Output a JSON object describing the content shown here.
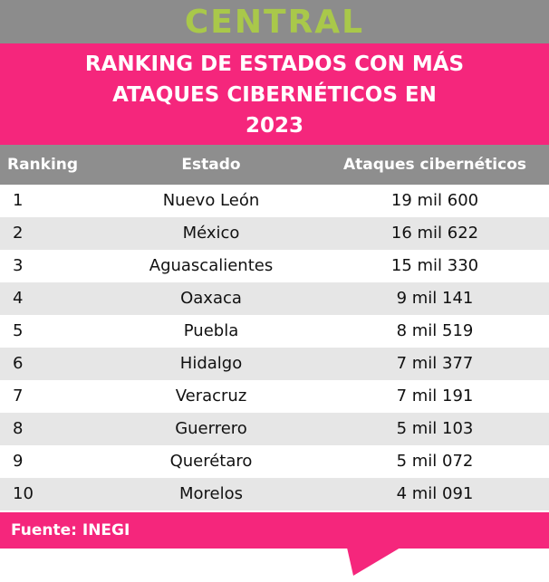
{
  "header": {
    "brand": "CENTRAL",
    "title_lines": [
      "RANKING DE ESTADOS CON MÁS",
      "ATAQUES CIBERNÉTICOS EN",
      "2023"
    ]
  },
  "table": {
    "columns": [
      "Ranking",
      "Estado",
      "Ataques cibernéticos"
    ],
    "rows": [
      [
        "1",
        "Nuevo León",
        "19 mil 600"
      ],
      [
        "2",
        "México",
        "16 mil 622"
      ],
      [
        "3",
        "Aguascalientes",
        "15 mil 330"
      ],
      [
        "4",
        "Oaxaca",
        "9 mil 141"
      ],
      [
        "5",
        "Puebla",
        "8 mil 519"
      ],
      [
        "6",
        "Hidalgo",
        "7 mil 377"
      ],
      [
        "7",
        "Veracruz",
        "7 mil 191"
      ],
      [
        "8",
        "Guerrero",
        "5 mil 103"
      ],
      [
        "9",
        "Querétaro",
        "5 mil 072"
      ],
      [
        "10",
        "Morelos",
        "4 mil 091"
      ]
    ]
  },
  "footer": {
    "source": "Fuente: INEGI"
  }
}
